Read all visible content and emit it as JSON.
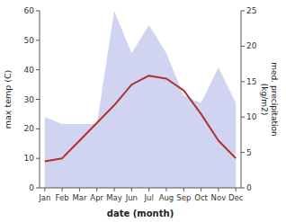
{
  "chart_data": {
    "type": "line",
    "xlabel": "date (month)",
    "ylabel": "max temp (C)",
    "y2label": "med. precipitation\n(kg/m2)",
    "categories": [
      "Jan",
      "Feb",
      "Mar",
      "Apr",
      "May",
      "Jun",
      "Jul",
      "Aug",
      "Sep",
      "Oct",
      "Nov",
      "Dec"
    ],
    "series": [
      {
        "type": "area",
        "axis": "y2",
        "color": "#b0b8e8",
        "values": [
          10,
          9,
          9,
          9,
          25,
          19,
          23,
          19,
          13,
          12,
          17,
          12
        ]
      },
      {
        "type": "line",
        "axis": "y",
        "color": "#b03030",
        "values": [
          9,
          10,
          16,
          22,
          28,
          35,
          38,
          37,
          33,
          25,
          16,
          10
        ]
      }
    ],
    "ylim": [
      0,
      60
    ],
    "yticks": [
      0,
      10,
      20,
      30,
      40,
      50,
      60
    ],
    "y2lim": [
      0,
      25
    ],
    "y2ticks": [
      0,
      5,
      10,
      15,
      20,
      25
    ],
    "grid": false
  }
}
